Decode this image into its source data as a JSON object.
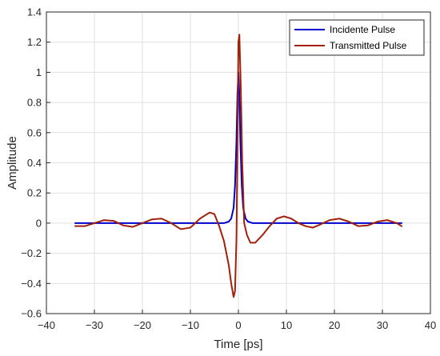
{
  "chart_data": {
    "type": "line",
    "title": "",
    "xlabel": "Time [ps]",
    "ylabel": "Amplitude",
    "xlim": [
      -40,
      40
    ],
    "ylim": [
      -0.6,
      1.4
    ],
    "xticks": [
      -40,
      -30,
      -20,
      -10,
      0,
      10,
      20,
      30,
      40
    ],
    "yticks": [
      -0.6,
      -0.4,
      -0.2,
      0,
      0.2,
      0.4,
      0.6,
      0.8,
      1,
      1.2,
      1.4
    ],
    "grid": true,
    "legend_position": "top-right",
    "series": [
      {
        "name": "Incidente Pulse",
        "color": "#0000CC",
        "x": [
          -34,
          -5,
          -3,
          -2,
          -1.5,
          -1,
          -0.7,
          -0.4,
          -0.2,
          0,
          0.2,
          0.4,
          0.7,
          1,
          1.5,
          2,
          3,
          5,
          34
        ],
        "y": [
          0,
          0,
          0,
          0.01,
          0.03,
          0.1,
          0.25,
          0.55,
          0.85,
          1.0,
          0.85,
          0.55,
          0.25,
          0.1,
          0.03,
          0.01,
          0,
          0,
          0
        ]
      },
      {
        "name": "Transmitted Pulse",
        "color": "#A0200A",
        "x": [
          -34,
          -32,
          -30,
          -28,
          -26,
          -24,
          -22,
          -20,
          -18,
          -16,
          -14,
          -12,
          -10,
          -8,
          -6,
          -5,
          -4,
          -3,
          -2,
          -1.5,
          -1,
          -0.7,
          -0.4,
          -0.2,
          0,
          0.2,
          0.5,
          0.8,
          1.2,
          1.8,
          2.5,
          3.5,
          5,
          6.5,
          8,
          9.5,
          11,
          12.5,
          14,
          15.5,
          17,
          19,
          21,
          23,
          25,
          27,
          29,
          31,
          33,
          34
        ],
        "y": [
          -0.02,
          -0.02,
          0.0,
          0.02,
          0.015,
          -0.015,
          -0.025,
          0.0,
          0.025,
          0.03,
          0.0,
          -0.04,
          -0.03,
          0.03,
          0.07,
          0.06,
          -0.02,
          -0.12,
          -0.28,
          -0.4,
          -0.49,
          -0.45,
          -0.1,
          0.5,
          1.2,
          1.25,
          0.9,
          0.4,
          0.0,
          -0.08,
          -0.13,
          -0.13,
          -0.08,
          -0.02,
          0.03,
          0.045,
          0.03,
          0.0,
          -0.02,
          -0.03,
          -0.01,
          0.02,
          0.03,
          0.01,
          -0.02,
          -0.015,
          0.01,
          0.02,
          0.0,
          -0.02
        ]
      }
    ]
  }
}
